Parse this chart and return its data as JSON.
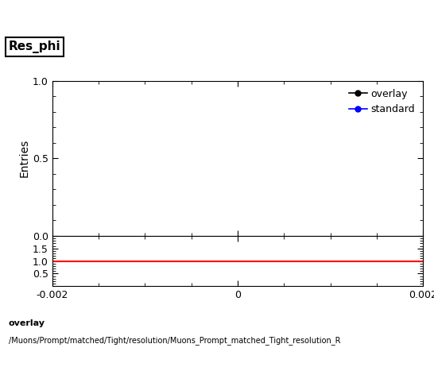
{
  "title": "Res_phi",
  "ylabel_main": "Entries",
  "xlim": [
    -0.002,
    0.002
  ],
  "ylim_main": [
    0,
    1
  ],
  "ylim_ratio": [
    0,
    2
  ],
  "yticks_main": [
    0,
    0.5,
    1
  ],
  "yticks_ratio": [
    0.5,
    1,
    1.5
  ],
  "legend_entries": [
    {
      "label": "overlay",
      "color": "#000000",
      "marker": "o"
    },
    {
      "label": "standard",
      "color": "#0000ff",
      "marker": "o"
    }
  ],
  "ratio_line_y": 1.0,
  "ratio_line_color": "#ff0000",
  "footer_line1": "overlay",
  "footer_line2": "/Muons/Prompt/matched/Tight/resolution/Muons_Prompt_matched_Tight_resolution_R",
  "xticks": [
    -0.002,
    0,
    0.002
  ],
  "xticklabels": [
    "-0.002",
    "0",
    "0.002"
  ],
  "background_color": "#ffffff"
}
